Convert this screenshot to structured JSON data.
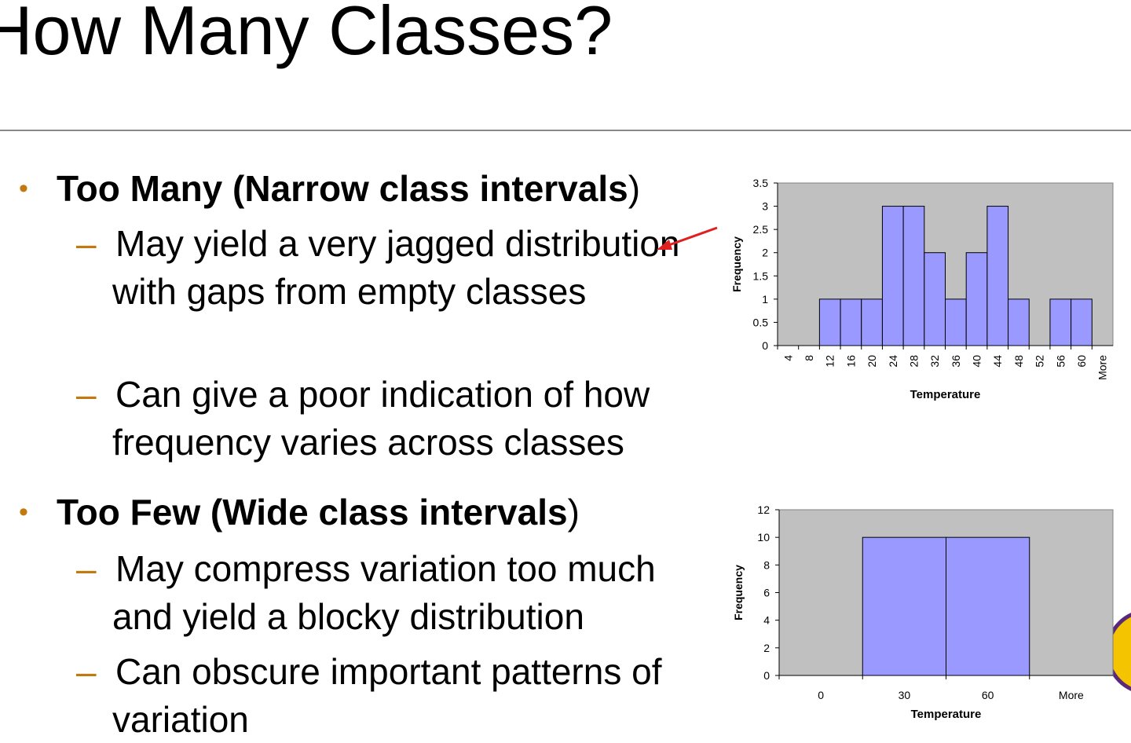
{
  "title": "How Many Classes?",
  "bullets": [
    {
      "bold": "Too Many (Narrow class intervals",
      "rest": ")",
      "items": [
        "May yield a very jagged distribution with gaps from empty classes",
        "Can give a poor indication of how frequency varies across classes"
      ]
    },
    {
      "bold": "Too Few (Wide class intervals",
      "rest": ")",
      "items": [
        "May compress variation too much and yield a blocky distribution",
        "Can obscure important patterns of variation"
      ]
    }
  ],
  "chart_data": [
    {
      "type": "bar",
      "x_label": "Temperature",
      "y_label": "Frequency",
      "categories": [
        "4",
        "8",
        "12",
        "16",
        "20",
        "24",
        "28",
        "32",
        "36",
        "40",
        "44",
        "48",
        "52",
        "56",
        "60",
        "More"
      ],
      "values": [
        0,
        0,
        1,
        1,
        1,
        3,
        3,
        2,
        1,
        2,
        3,
        1,
        0,
        1,
        1,
        0
      ],
      "color": "#9999ff",
      "background": "#c0c0c0",
      "rotated_labels": true,
      "ylim": [
        0,
        3.5
      ],
      "yticks": [
        0,
        0.5,
        1,
        1.5,
        2,
        2.5,
        3,
        3.5
      ]
    },
    {
      "type": "bar",
      "x_label": "Temperature",
      "y_label": "Frequency",
      "categories": [
        "0",
        "30",
        "60",
        "More"
      ],
      "values": [
        0,
        10,
        10,
        0
      ],
      "color": "#9999ff",
      "background": "#c0c0c0",
      "rotated_labels": false,
      "ylim": [
        0,
        12
      ],
      "yticks": [
        0,
        2,
        4,
        6,
        8,
        10,
        12
      ]
    }
  ]
}
